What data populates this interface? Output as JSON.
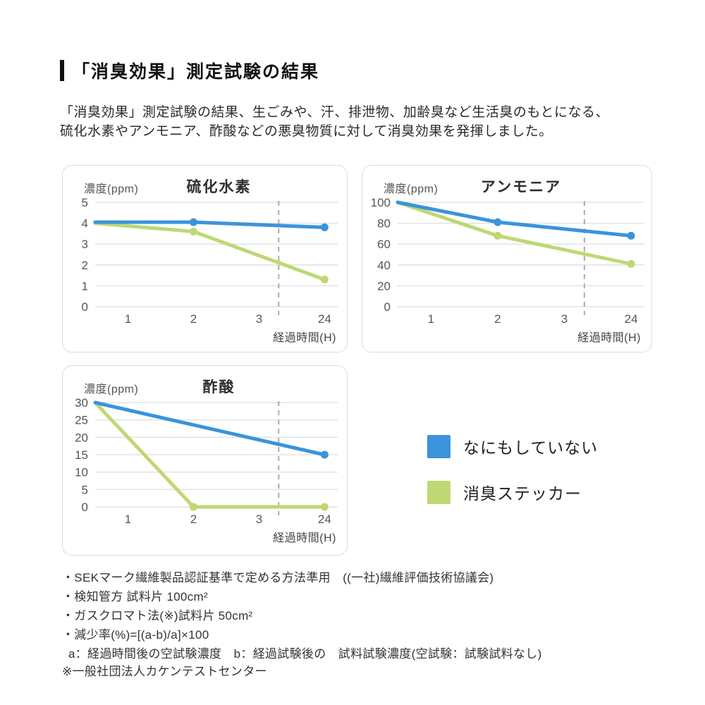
{
  "page": {
    "title": "「消臭効果」測定試験の結果",
    "intro_line1": "「消臭効果」測定試験の結果、生ごみや、汗、排泄物、加齢臭など生活臭のもとになる、",
    "intro_line2": "硫化水素やアンモニア、酢酸などの悪臭物質に対して消臭効果を発揮しました。"
  },
  "colors": {
    "blue": "#3b93db",
    "green": "#bed873",
    "grid": "#e3e3e3",
    "dashed": "#ababab"
  },
  "legend": {
    "position": "right-of-third-chart",
    "items": [
      {
        "label": "なにもしていない",
        "color_key": "blue"
      },
      {
        "label": "消臭ステッカー",
        "color_key": "green"
      }
    ]
  },
  "chart_data": [
    {
      "type": "line",
      "title": "硫化水素",
      "y_label": "濃度(ppm)",
      "x_label": "経過時間(H)",
      "x_ticks": [
        1,
        2,
        3,
        24
      ],
      "y_ticks": [
        5,
        4,
        3,
        2,
        1,
        0
      ],
      "y_max": 5,
      "grid": true,
      "dashed_guide_between": [
        3,
        24
      ],
      "series": [
        {
          "name": "なにもしていない",
          "color": "blue",
          "points": [
            [
              0,
              4.05
            ],
            [
              2,
              4.05
            ],
            [
              24,
              3.8
            ]
          ],
          "dots": [
            2,
            24
          ]
        },
        {
          "name": "消臭ステッカー",
          "color": "green",
          "points": [
            [
              0,
              4.0
            ],
            [
              2,
              3.6
            ],
            [
              24,
              1.3
            ]
          ],
          "dots": [
            2,
            24
          ]
        }
      ]
    },
    {
      "type": "line",
      "title": "アンモニア",
      "y_label": "濃度(ppm)",
      "x_label": "経過時間(H)",
      "x_ticks": [
        1,
        2,
        3,
        24
      ],
      "y_ticks": [
        100,
        80,
        60,
        40,
        20,
        0
      ],
      "y_max": 100,
      "grid": true,
      "dashed_guide_between": [
        3,
        24
      ],
      "series": [
        {
          "name": "なにもしていない",
          "color": "blue",
          "points": [
            [
              0,
              100
            ],
            [
              2,
              81
            ],
            [
              24,
              68
            ]
          ],
          "dots": [
            2,
            24
          ]
        },
        {
          "name": "消臭ステッカー",
          "color": "green",
          "points": [
            [
              0,
              100
            ],
            [
              2,
              68
            ],
            [
              24,
              41
            ]
          ],
          "dots": [
            2,
            24
          ]
        }
      ]
    },
    {
      "type": "line",
      "title": "酢酸",
      "y_label": "濃度(ppm)",
      "x_label": "経過時間(H)",
      "x_ticks": [
        1,
        2,
        3,
        24
      ],
      "y_ticks": [
        30,
        25,
        20,
        15,
        10,
        5,
        0
      ],
      "y_max": 30,
      "grid": true,
      "dashed_guide_between": [
        3,
        24
      ],
      "series": [
        {
          "name": "なにもしていない",
          "color": "blue",
          "points": [
            [
              0,
              30
            ],
            [
              24,
              15
            ]
          ],
          "dots": [
            24
          ]
        },
        {
          "name": "消臭ステッカー",
          "color": "green",
          "points": [
            [
              0,
              30
            ],
            [
              2,
              0
            ],
            [
              24,
              0
            ]
          ],
          "dots": [
            2,
            24
          ]
        }
      ]
    }
  ],
  "footnotes": [
    "・SEKマーク繊維製品認証基準で定める方法準用　((一社)繊維評価技術協議会)",
    "・検知管方 試料片 100cm²",
    "・ガスクロマト法(※)試料片 50cm²",
    "・減少率(%)=[(a-b)/a]×100",
    "a：経過時間後の空試験濃度　b：経過試験後の　試料試験濃度(空試験：試験試料なし)"
  ],
  "bottom_note": "※一般社団法人カケンテストセンター"
}
